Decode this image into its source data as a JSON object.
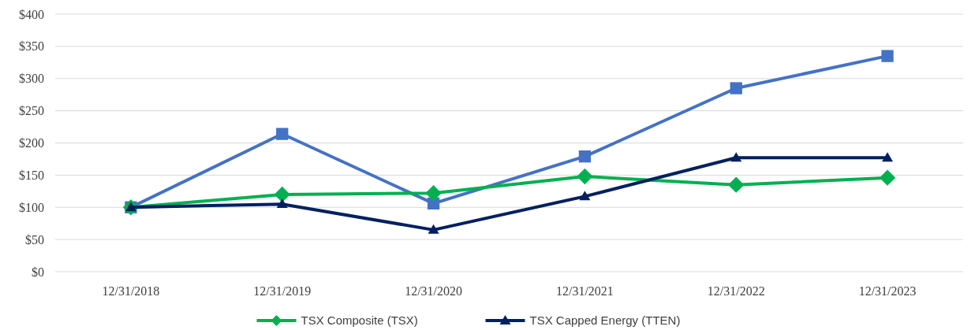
{
  "chart_data": {
    "type": "line",
    "categories": [
      "12/31/2018",
      "12/31/2019",
      "12/31/2020",
      "12/31/2021",
      "12/31/2022",
      "12/31/2023"
    ],
    "series": [
      {
        "color": "#4472c4",
        "marker": "square",
        "values": [
          100,
          214,
          106,
          179,
          285,
          335
        ]
      },
      {
        "name": "TSX Composite (TSX)",
        "color": "#00b050",
        "marker": "diamond",
        "values": [
          100,
          120,
          122,
          148,
          135,
          146
        ]
      },
      {
        "name": "TSX Capped Energy (TTEN)",
        "color": "#002060",
        "marker": "triangle",
        "values": [
          100,
          105,
          65,
          117,
          177,
          177
        ]
      }
    ],
    "ylim": [
      0,
      400
    ],
    "yticks": [
      {
        "value": 0,
        "label": "$0"
      },
      {
        "value": 50,
        "label": "$50"
      },
      {
        "value": 100,
        "label": "$100"
      },
      {
        "value": 150,
        "label": "$150"
      },
      {
        "value": 200,
        "label": "$200"
      },
      {
        "value": 250,
        "label": "$250"
      },
      {
        "value": 300,
        "label": "$300"
      },
      {
        "value": 350,
        "label": "$350"
      },
      {
        "value": 400,
        "label": "$400"
      }
    ],
    "grid": "y",
    "legend": "bottom",
    "line_style": "solid"
  }
}
